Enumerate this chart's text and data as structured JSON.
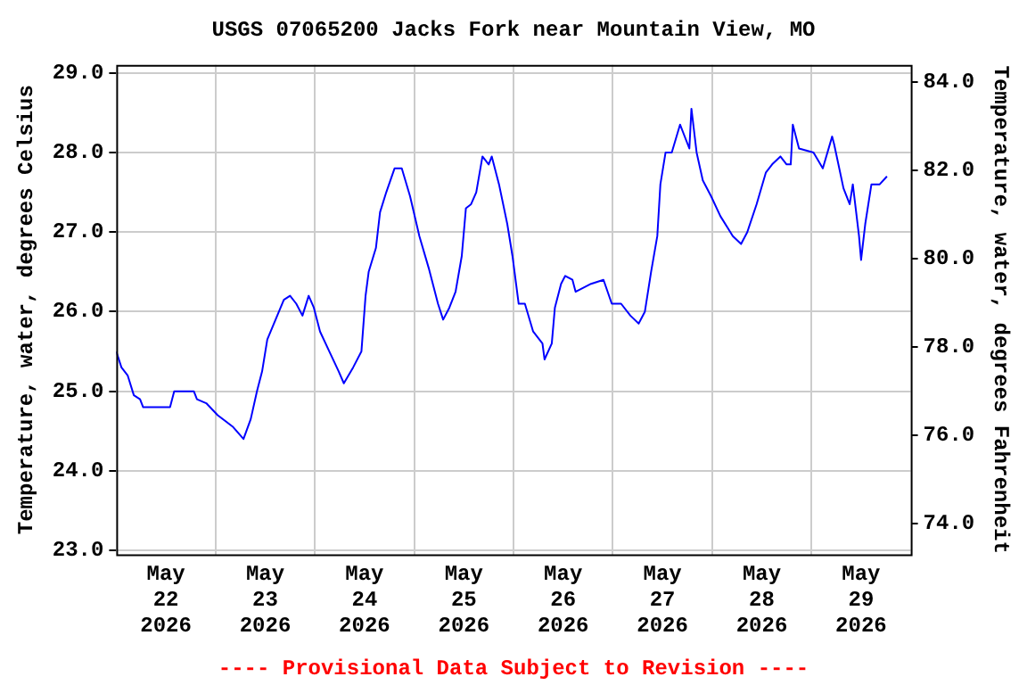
{
  "chart_data": {
    "type": "line",
    "title": "USGS 07065200 Jacks Fork near Mountain View, MO",
    "ylabel": "Temperature, water, degrees Celsius",
    "y2label": "Temperature, water, degrees Fahrenheit",
    "annotations": [
      "---- Provisional Data Subject to Revision ----"
    ],
    "xlim": [
      "2026-05-22T00:00",
      "2026-05-30T00:00"
    ],
    "xticks": [
      {
        "value": "2026-05-22T12:00",
        "label": "May\n22\n2026"
      },
      {
        "value": "2026-05-23T00:00",
        "label": null
      },
      {
        "value": "2026-05-23T12:00",
        "label": "May\n23\n2026"
      },
      {
        "value": "2026-05-24T00:00",
        "label": null
      },
      {
        "value": "2026-05-24T12:00",
        "label": "May\n24\n2026"
      },
      {
        "value": "2026-05-25T00:00",
        "label": null
      },
      {
        "value": "2026-05-25T12:00",
        "label": "May\n25\n2026"
      },
      {
        "value": "2026-05-26T00:00",
        "label": null
      },
      {
        "value": "2026-05-26T12:00",
        "label": "May\n26\n2026"
      },
      {
        "value": "2026-05-27T00:00",
        "label": null
      },
      {
        "value": "2026-05-27T12:00",
        "label": "May\n27\n2026"
      },
      {
        "value": "2026-05-28T00:00",
        "label": null
      },
      {
        "value": "2026-05-28T12:00",
        "label": "May\n28\n2026"
      },
      {
        "value": "2026-05-29T00:00",
        "label": null
      },
      {
        "value": "2026-05-29T12:00",
        "label": "May\n29\n2026"
      }
    ],
    "ylim": [
      22.95,
      29.1
    ],
    "yticks": [
      {
        "value": 23,
        "label": "23.0"
      },
      {
        "value": 24,
        "label": "24.0"
      },
      {
        "value": 25,
        "label": "25.0"
      },
      {
        "value": 26,
        "label": "26.0"
      },
      {
        "value": 27,
        "label": "27.0"
      },
      {
        "value": 28,
        "label": "28.0"
      },
      {
        "value": 29,
        "label": "29.0"
      }
    ],
    "y2lim": [
      73.31,
      84.38
    ],
    "y2ticks": [
      {
        "value": 74,
        "label": "74.0"
      },
      {
        "value": 76,
        "label": "76.0"
      },
      {
        "value": 78,
        "label": "78.0"
      },
      {
        "value": 80,
        "label": "80.0"
      },
      {
        "value": 82,
        "label": "82.0"
      },
      {
        "value": 84,
        "label": "84.0"
      }
    ],
    "grid": true,
    "legend": false,
    "marker": "none",
    "line_style": "solid",
    "series": [
      {
        "color": "#0000ff",
        "x": [
          "2026-05-22T00:00",
          "2026-05-22T01:15",
          "2026-05-22T02:45",
          "2026-05-22T04:15",
          "2026-05-22T05:45",
          "2026-05-22T06:30",
          "2026-05-22T07:45",
          "2026-05-22T13:00",
          "2026-05-22T14:00",
          "2026-05-22T18:45",
          "2026-05-22T19:30",
          "2026-05-22T21:45",
          "2026-05-23T00:30",
          "2026-05-23T04:15",
          "2026-05-23T06:45",
          "2026-05-23T08:30",
          "2026-05-23T10:00",
          "2026-05-23T11:15",
          "2026-05-23T12:30",
          "2026-05-23T14:30",
          "2026-05-23T16:30",
          "2026-05-23T18:00",
          "2026-05-23T19:30",
          "2026-05-23T21:00",
          "2026-05-23T22:30",
          "2026-05-23T23:45",
          "2026-05-24T01:15",
          "2026-05-24T03:30",
          "2026-05-24T05:45",
          "2026-05-24T07:00",
          "2026-05-24T09:15",
          "2026-05-24T11:15",
          "2026-05-24T12:15",
          "2026-05-24T13:00",
          "2026-05-24T14:45",
          "2026-05-24T15:45",
          "2026-05-24T17:15",
          "2026-05-24T19:15",
          "2026-05-24T21:00",
          "2026-05-24T23:00",
          "2026-05-25T01:15",
          "2026-05-25T03:30",
          "2026-05-25T05:45",
          "2026-05-25T07:00",
          "2026-05-25T08:30",
          "2026-05-25T10:00",
          "2026-05-25T11:30",
          "2026-05-25T12:30",
          "2026-05-25T13:45",
          "2026-05-25T15:00",
          "2026-05-25T16:30",
          "2026-05-25T18:00",
          "2026-05-25T18:45",
          "2026-05-25T20:30",
          "2026-05-25T22:30",
          "2026-05-25T23:45",
          "2026-05-26T01:15",
          "2026-05-26T02:45",
          "2026-05-26T04:45",
          "2026-05-26T07:00",
          "2026-05-26T07:30",
          "2026-05-26T09:15",
          "2026-05-26T10:00",
          "2026-05-26T11:30",
          "2026-05-26T12:30",
          "2026-05-26T14:15",
          "2026-05-26T15:00",
          "2026-05-26T18:45",
          "2026-05-26T21:45",
          "2026-05-26T23:45",
          "2026-05-27T02:00",
          "2026-05-27T04:15",
          "2026-05-27T06:15",
          "2026-05-27T07:45",
          "2026-05-27T09:15",
          "2026-05-27T10:45",
          "2026-05-27T11:30",
          "2026-05-27T12:45",
          "2026-05-27T14:15",
          "2026-05-27T16:15",
          "2026-05-27T18:30",
          "2026-05-27T19:00",
          "2026-05-27T20:15",
          "2026-05-27T21:45",
          "2026-05-27T23:45",
          "2026-05-28T02:00",
          "2026-05-28T05:00",
          "2026-05-28T07:00",
          "2026-05-28T08:30",
          "2026-05-28T10:45",
          "2026-05-28T13:00",
          "2026-05-28T14:30",
          "2026-05-28T16:30",
          "2026-05-28T18:00",
          "2026-05-28T19:00",
          "2026-05-28T19:30",
          "2026-05-28T21:00",
          "2026-05-29T00:30",
          "2026-05-29T02:45",
          "2026-05-29T05:00",
          "2026-05-29T05:30",
          "2026-05-29T07:45",
          "2026-05-29T09:15",
          "2026-05-29T10:00",
          "2026-05-29T11:30",
          "2026-05-29T12:00",
          "2026-05-29T13:00",
          "2026-05-29T14:30",
          "2026-05-29T16:30",
          "2026-05-29T18:15"
        ],
        "values": [
          25.5,
          25.3,
          25.2,
          24.95,
          24.9,
          24.8,
          24.8,
          24.8,
          25.0,
          25.0,
          24.9,
          24.85,
          24.7,
          24.55,
          24.4,
          24.65,
          25.0,
          25.25,
          25.65,
          25.9,
          26.15,
          26.2,
          26.1,
          25.95,
          26.2,
          26.05,
          25.75,
          25.5,
          25.25,
          25.1,
          25.3,
          25.5,
          26.2,
          26.5,
          26.8,
          27.25,
          27.5,
          27.8,
          27.8,
          27.45,
          26.95,
          26.55,
          26.1,
          25.9,
          26.05,
          26.25,
          26.7,
          27.3,
          27.35,
          27.5,
          27.95,
          27.85,
          27.95,
          27.6,
          27.1,
          26.7,
          26.1,
          26.1,
          25.75,
          25.6,
          25.4,
          25.6,
          26.05,
          26.35,
          26.45,
          26.4,
          26.25,
          26.35,
          26.4,
          26.1,
          26.1,
          25.95,
          25.85,
          26.0,
          26.5,
          26.95,
          27.6,
          28.0,
          28.0,
          28.35,
          28.05,
          28.55,
          28.0,
          27.65,
          27.45,
          27.2,
          26.95,
          26.85,
          27.0,
          27.35,
          27.75,
          27.85,
          27.95,
          27.85,
          27.85,
          28.35,
          28.05,
          28.0,
          27.8,
          28.2,
          28.1,
          27.55,
          27.35,
          27.6,
          26.95,
          26.65,
          27.1,
          27.6,
          27.6,
          27.7
        ]
      }
    ]
  }
}
